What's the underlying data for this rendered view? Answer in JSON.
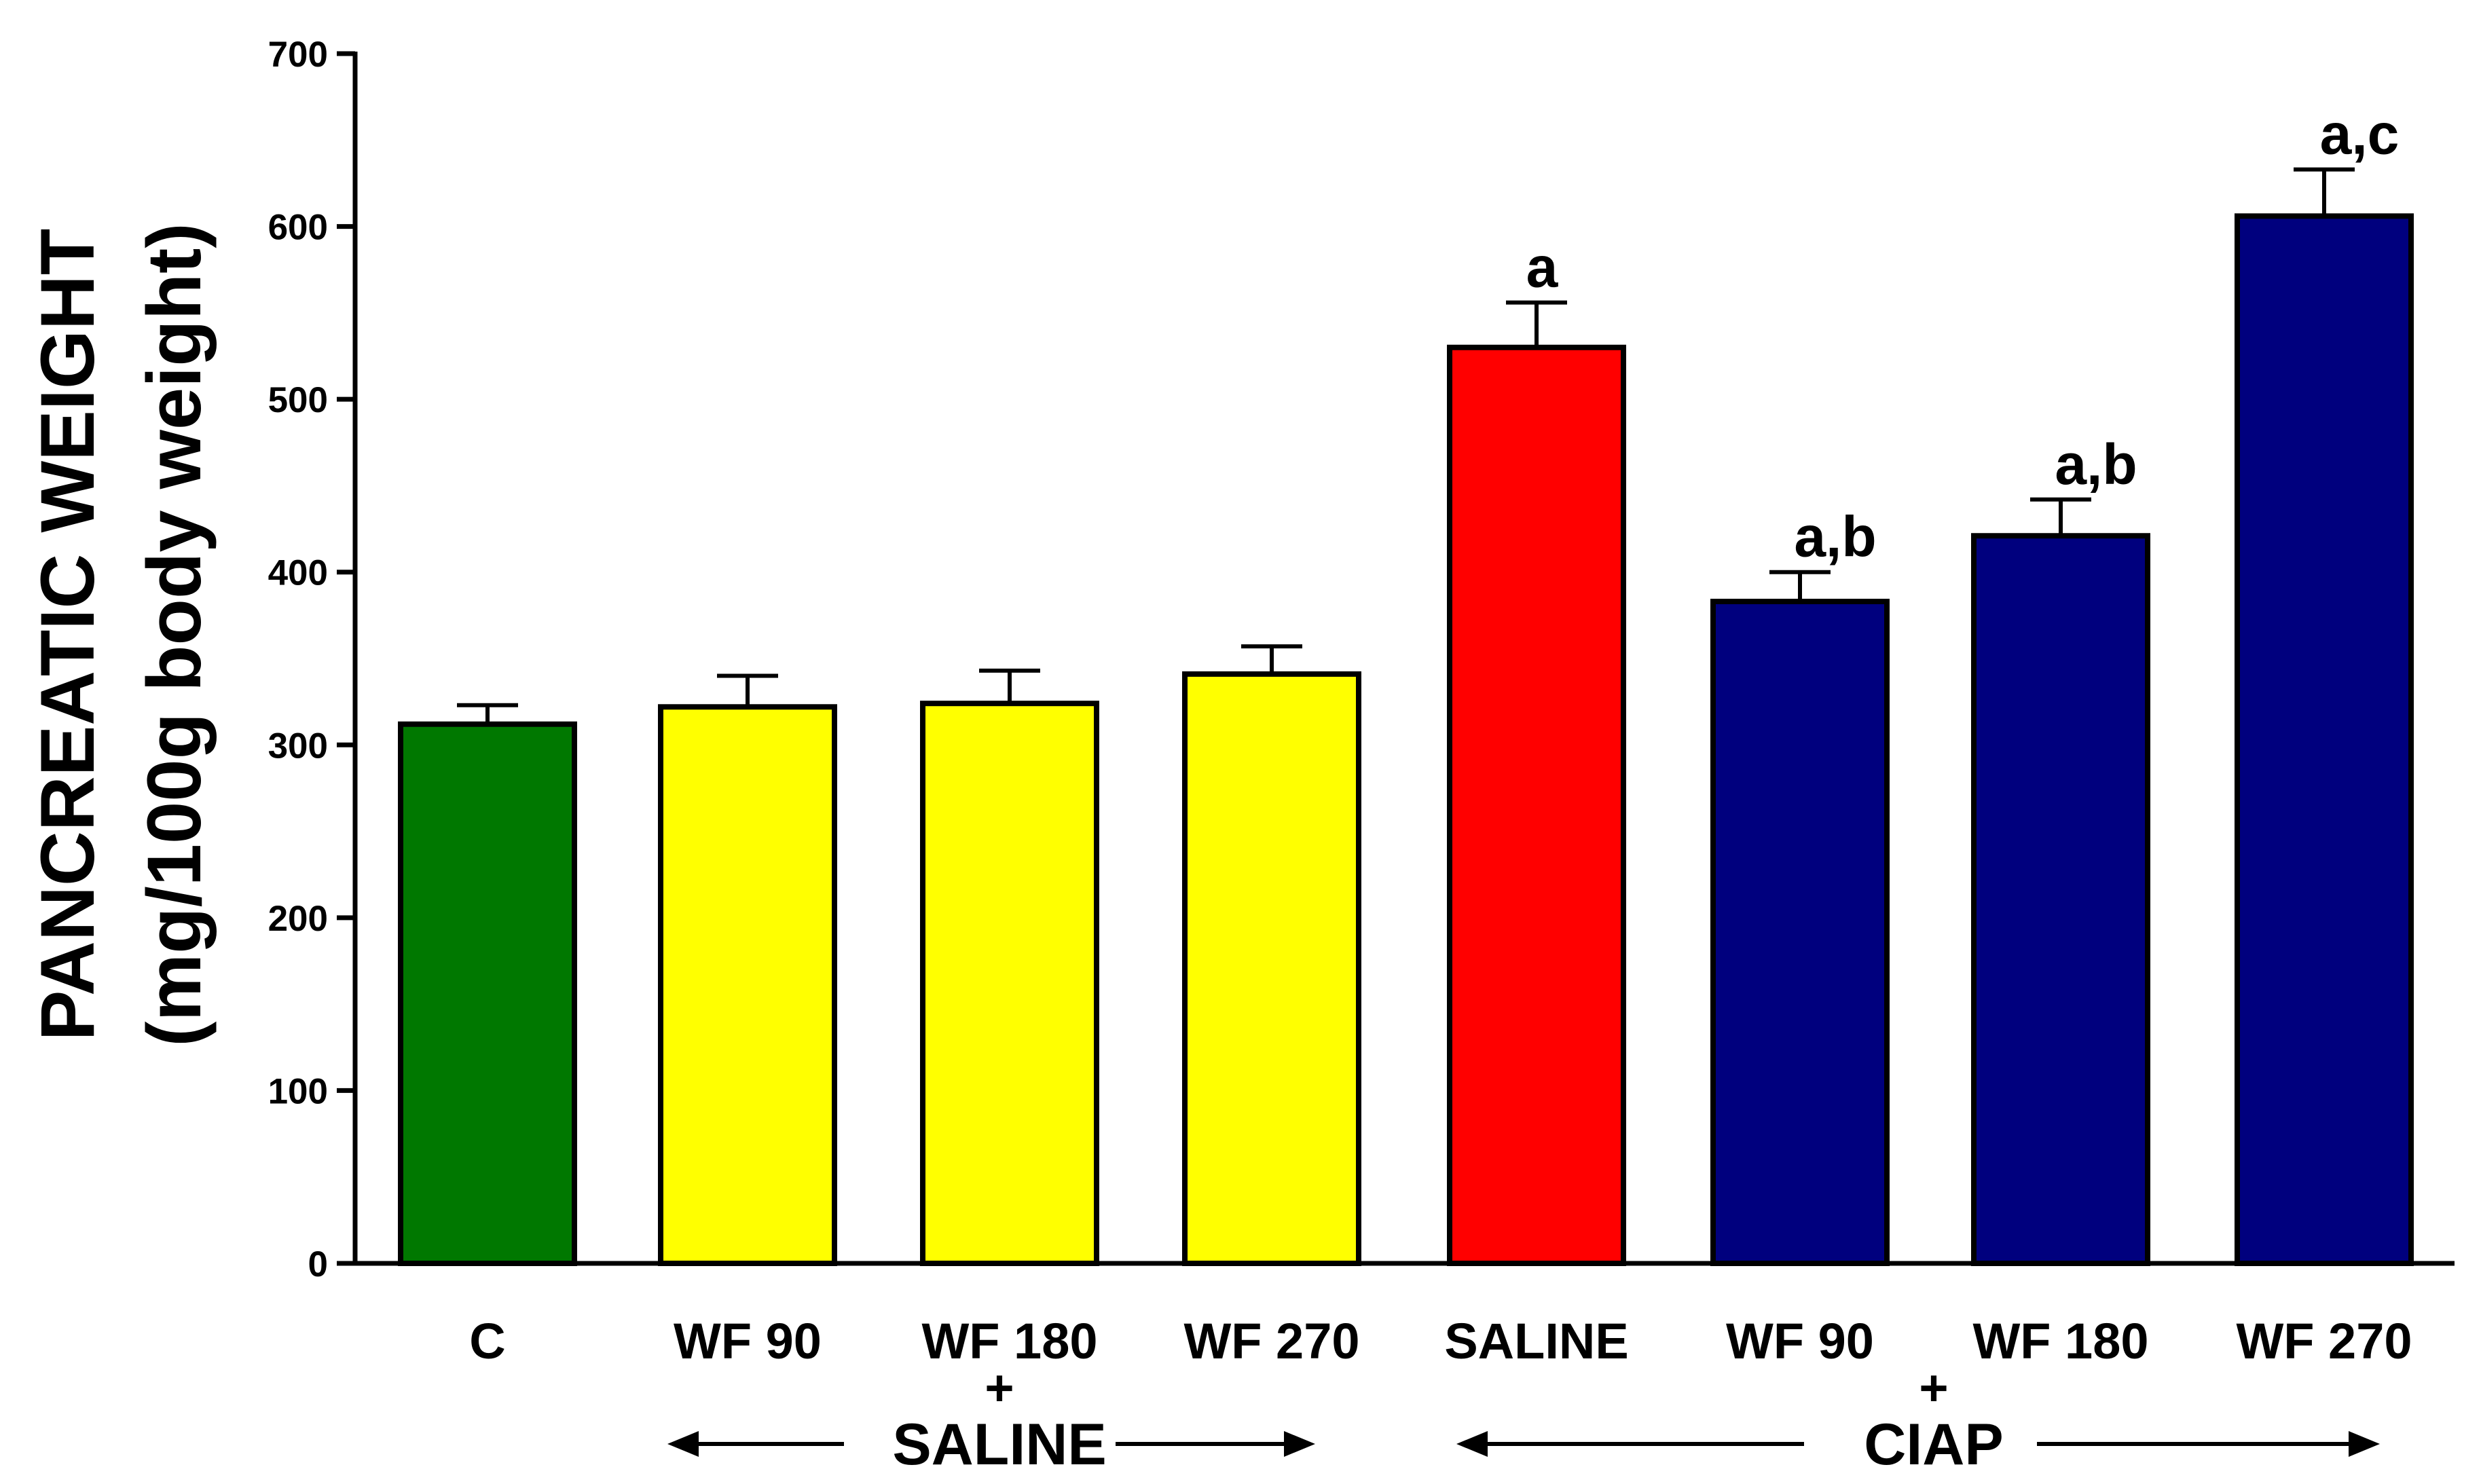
{
  "chart_data": {
    "type": "bar",
    "title": "",
    "ylabel": "PANCREATIC WEIGHT",
    "ylabel_units": "(mg/100g body weight)",
    "xlabel": "",
    "ylim": [
      0,
      700
    ],
    "yticks": [
      "0",
      "100",
      "200",
      "300",
      "400",
      "500",
      "600",
      "700"
    ],
    "grid": false,
    "legend": "none",
    "categories": [
      "C",
      "WF 90",
      "WF 180",
      "WF 270",
      "SALINE",
      "WF 90",
      "WF 180",
      "WF 270"
    ],
    "values": [
      312,
      322,
      324,
      341,
      530,
      383,
      421,
      606
    ],
    "errors": [
      11,
      18,
      19,
      16,
      26,
      17,
      21,
      27
    ],
    "colors": [
      "#007800",
      "#ffff00",
      "#ffff00",
      "#ffff00",
      "#ff0000",
      "#00007e",
      "#00007e",
      "#00007e"
    ],
    "annotations": [
      "",
      "",
      "",
      "",
      "a",
      "a,b",
      "a,b",
      "a,c"
    ],
    "groups": [
      {
        "label": "SALINE",
        "plus": "+",
        "from": 1,
        "to": 3
      },
      {
        "label": "CIAP",
        "plus": "+",
        "from": 4,
        "to": 7
      }
    ]
  }
}
